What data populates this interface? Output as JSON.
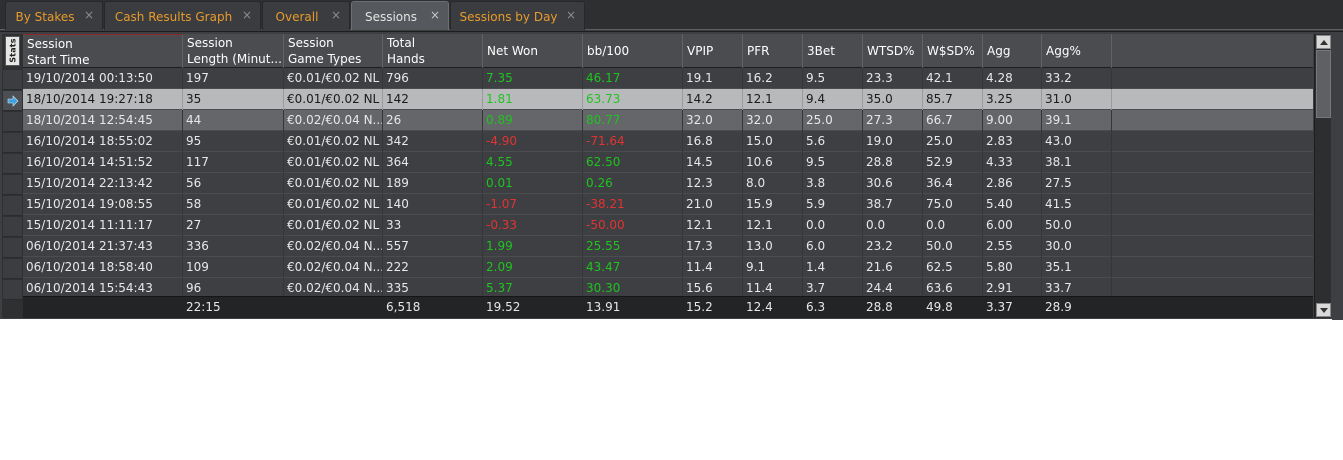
{
  "tabs": [
    {
      "label": "By Stakes",
      "active": false
    },
    {
      "label": "Cash Results Graph",
      "active": false
    },
    {
      "label": "Overall",
      "active": false
    },
    {
      "label": "Sessions",
      "active": true
    },
    {
      "label": "Sessions by Day",
      "active": false
    }
  ],
  "close_glyph": "×",
  "stats_tab_label": "Stats",
  "columns": [
    {
      "line1": "Session",
      "line2": "Start Time"
    },
    {
      "line1": "Session",
      "line2": "Length (Minut..."
    },
    {
      "line1": "Session",
      "line2": "Game Types"
    },
    {
      "line1": "Total",
      "line2": "Hands"
    },
    {
      "line1": "Net Won",
      "line2": ""
    },
    {
      "line1": "bb/100",
      "line2": ""
    },
    {
      "line1": "VPIP",
      "line2": ""
    },
    {
      "line1": "PFR",
      "line2": ""
    },
    {
      "line1": "3Bet",
      "line2": ""
    },
    {
      "line1": "WTSD%",
      "line2": ""
    },
    {
      "line1": "W$SD%",
      "line2": ""
    },
    {
      "line1": "Agg",
      "line2": ""
    },
    {
      "line1": "Agg%",
      "line2": ""
    }
  ],
  "rows": [
    [
      "19/10/2014 00:13:50",
      "197",
      "€0.01/€0.02 NL",
      "796",
      "7.35",
      "46.17",
      "19.1",
      "16.2",
      "9.5",
      "23.3",
      "42.1",
      "4.28",
      "33.2"
    ],
    [
      "18/10/2014 19:27:18",
      "35",
      "€0.01/€0.02 NL",
      "142",
      "1.81",
      "63.73",
      "14.2",
      "12.1",
      "9.4",
      "35.0",
      "85.7",
      "3.25",
      "31.0"
    ],
    [
      "18/10/2014 12:54:45",
      "44",
      "€0.02/€0.04 N...",
      "26",
      "0.89",
      "80.77",
      "32.0",
      "32.0",
      "25.0",
      "27.3",
      "66.7",
      "9.00",
      "39.1"
    ],
    [
      "16/10/2014 18:55:02",
      "95",
      "€0.01/€0.02 NL",
      "342",
      "-4.90",
      "-71.64",
      "16.8",
      "15.0",
      "5.6",
      "19.0",
      "25.0",
      "2.83",
      "43.0"
    ],
    [
      "16/10/2014 14:51:52",
      "117",
      "€0.01/€0.02 NL",
      "364",
      "4.55",
      "62.50",
      "14.5",
      "10.6",
      "9.5",
      "28.8",
      "52.9",
      "4.33",
      "38.1"
    ],
    [
      "15/10/2014 22:13:42",
      "56",
      "€0.01/€0.02 NL",
      "189",
      "0.01",
      "0.26",
      "12.3",
      "8.0",
      "3.8",
      "30.6",
      "36.4",
      "2.86",
      "27.5"
    ],
    [
      "15/10/2014 19:08:55",
      "58",
      "€0.01/€0.02 NL",
      "140",
      "-1.07",
      "-38.21",
      "21.0",
      "15.9",
      "5.9",
      "38.7",
      "75.0",
      "5.40",
      "41.5"
    ],
    [
      "15/10/2014 11:11:17",
      "27",
      "€0.01/€0.02 NL",
      "33",
      "-0.33",
      "-50.00",
      "12.1",
      "12.1",
      "0.0",
      "0.0",
      "0.0",
      "6.00",
      "50.0"
    ],
    [
      "06/10/2014 21:37:43",
      "336",
      "€0.02/€0.04 N...",
      "557",
      "1.99",
      "25.55",
      "17.3",
      "13.0",
      "6.0",
      "23.2",
      "50.0",
      "2.55",
      "30.0"
    ],
    [
      "06/10/2014 18:58:40",
      "109",
      "€0.02/€0.04 N...",
      "222",
      "2.09",
      "43.47",
      "11.4",
      "9.1",
      "1.4",
      "21.6",
      "62.5",
      "5.80",
      "35.1"
    ],
    [
      "06/10/2014 15:54:43",
      "96",
      "€0.02/€0.04 N...",
      "335",
      "5.37",
      "30.30",
      "15.6",
      "11.4",
      "3.7",
      "24.4",
      "63.6",
      "2.91",
      "33.7"
    ]
  ],
  "totals": [
    "",
    "22:15",
    "",
    "6,518",
    "19.52",
    "13.91",
    "15.2",
    "12.4",
    "6.3",
    "28.8",
    "49.8",
    "3.37",
    "28.9"
  ],
  "colors": {
    "positive": "#1fc41f",
    "negative": "#e23333",
    "tab_text": "#e89b2c",
    "arrow": "#3fa0e0"
  }
}
